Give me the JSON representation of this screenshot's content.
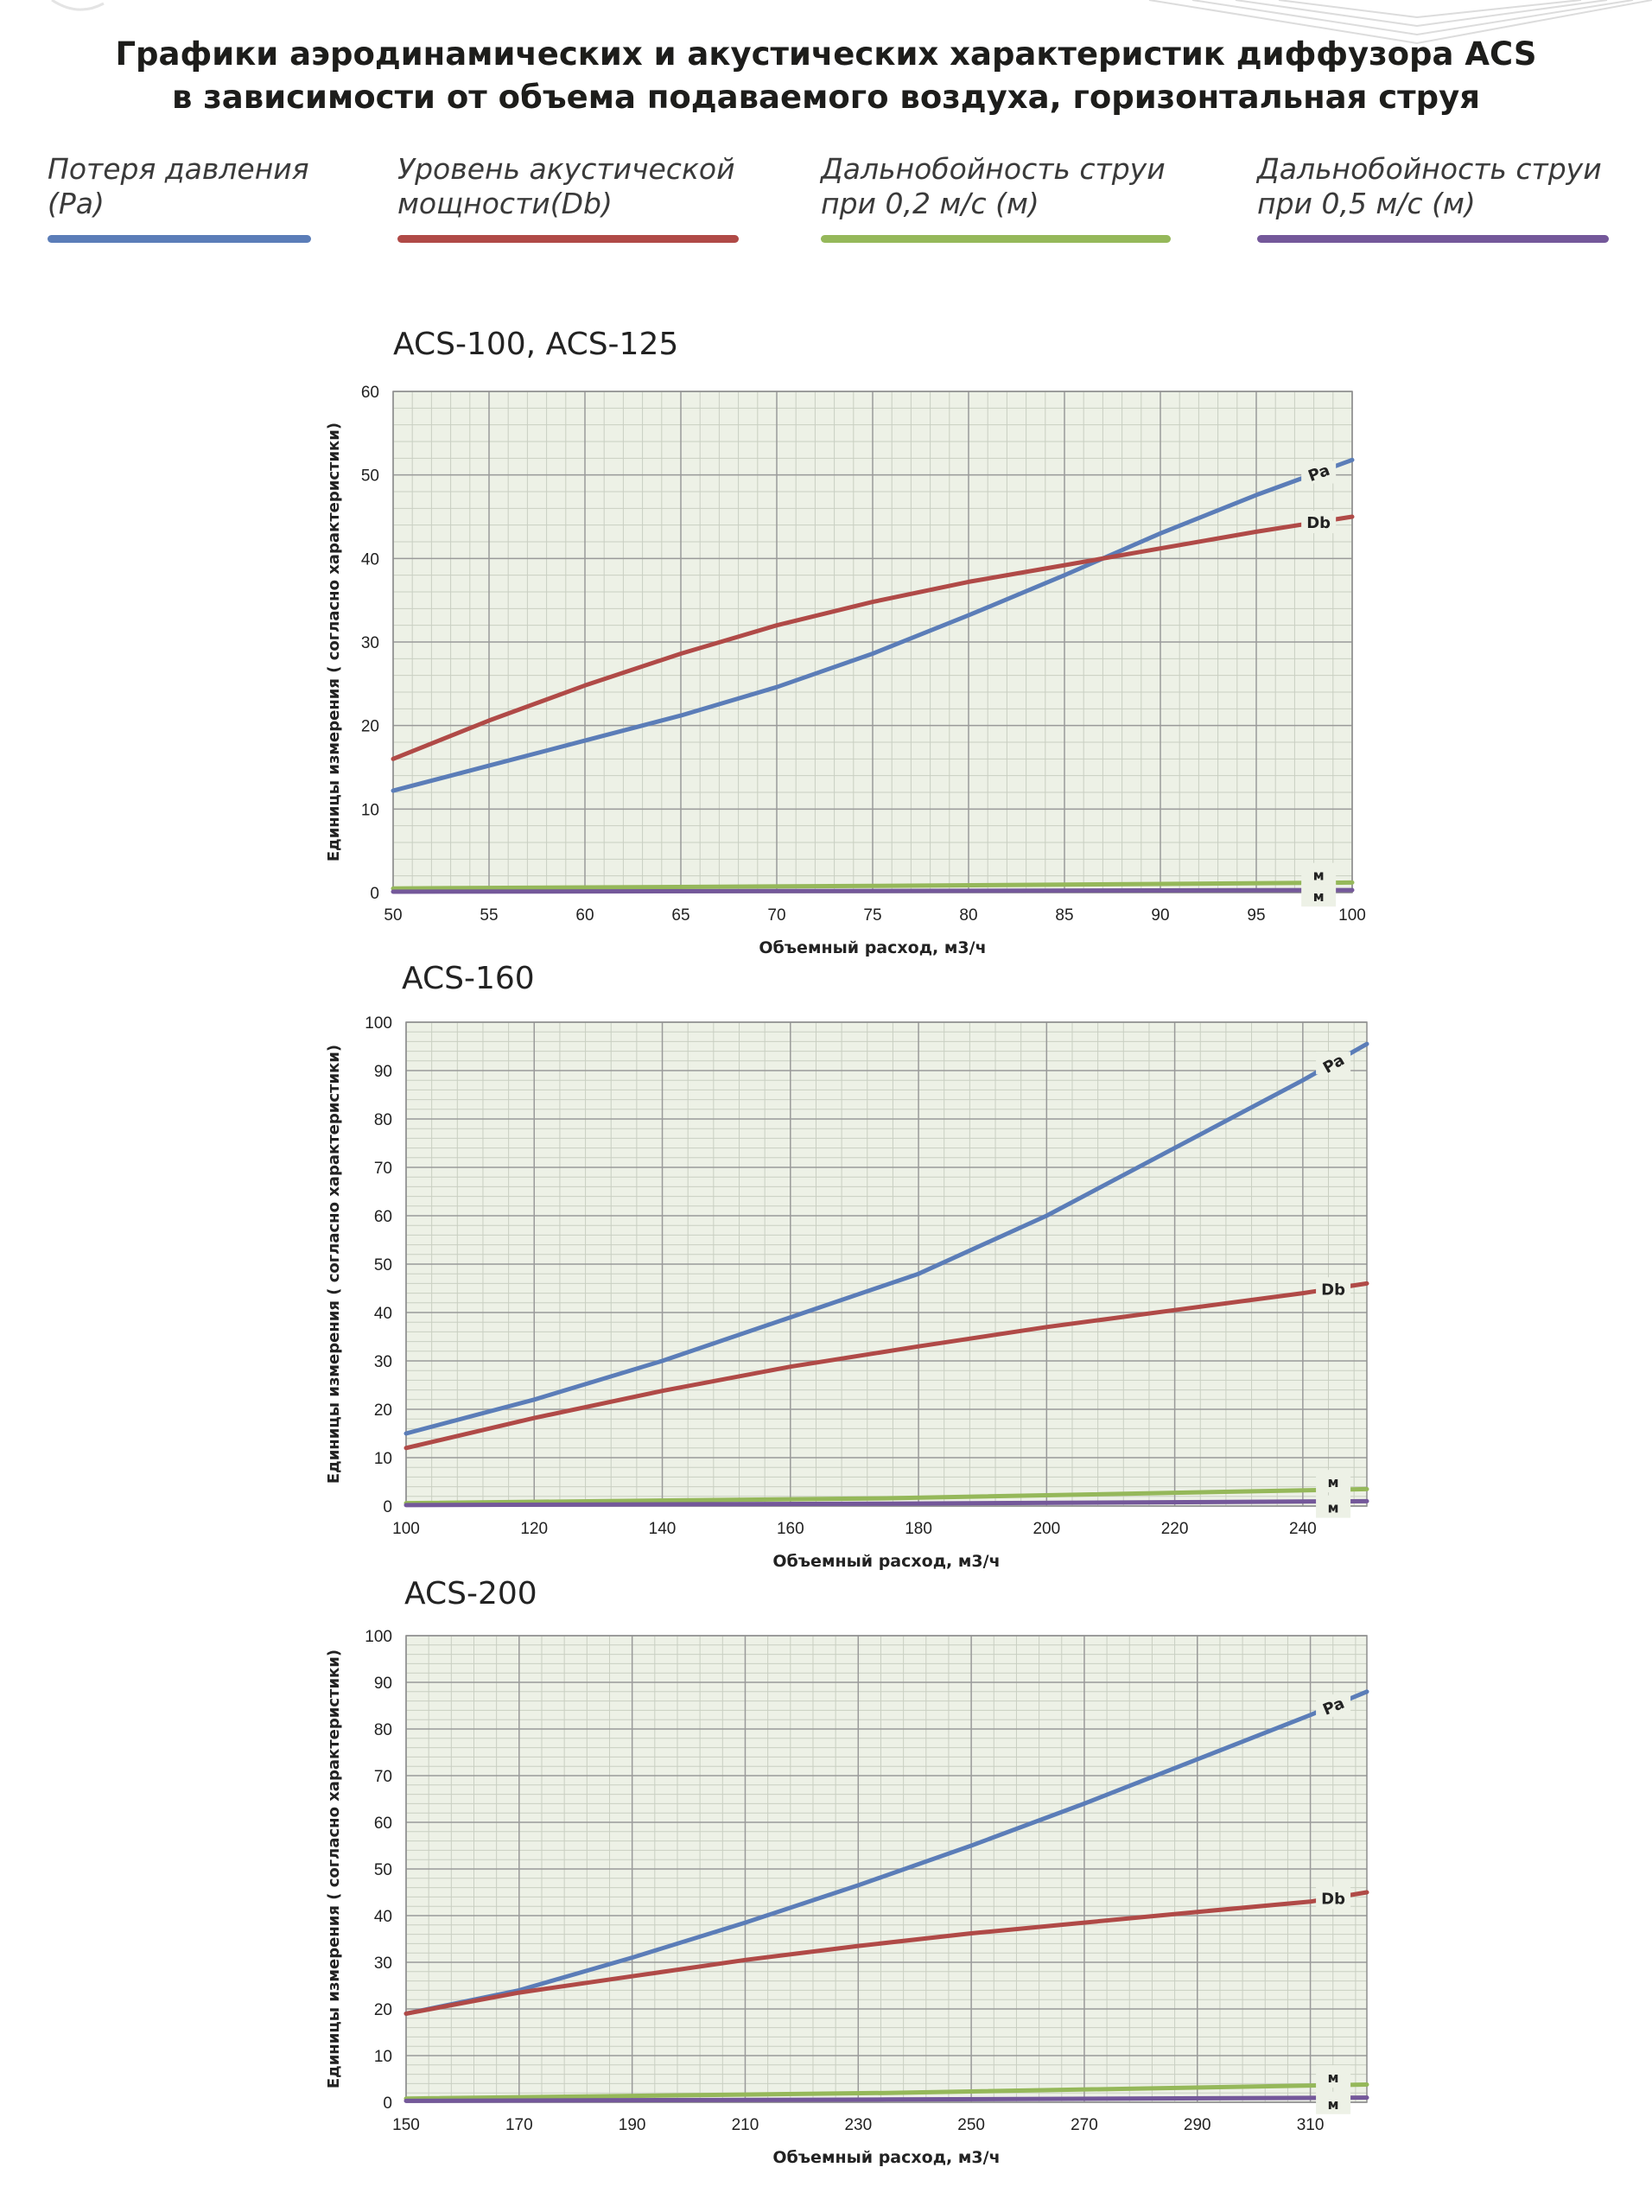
{
  "header": {
    "title_line1": "Графики аэродинамических и акустических характеристик диффузора ACS",
    "title_line2": "в зависимости от объема подаваемого воздуха, горизонтальная струя"
  },
  "legend": [
    {
      "label": "Потеря давления\n(Pa)",
      "color": "#5b7db8"
    },
    {
      "label": "Уровень акустической\nмощности(Db)",
      "color": "#b04a47"
    },
    {
      "label": "Дальнобойность струи\nпри 0,2 м/с (м)",
      "color": "#95b85a"
    },
    {
      "label": "Дальнобойность струи\nпри 0,5 м/с (м)",
      "color": "#74589a"
    }
  ],
  "colors": {
    "pa": "#5b7db8",
    "db": "#b04a47",
    "m02": "#95b85a",
    "m05": "#74589a",
    "plot_bg": "#edf1e6",
    "grid_major": "#9a9a9a",
    "grid_minor": "#c9cfc2"
  },
  "chart_data": [
    {
      "type": "line",
      "title": "ACS-100, ACS-125",
      "xlabel": "Объемный расход, м3/ч",
      "ylabel": "Единицы измерения ( согласно характеристики)",
      "xlim": [
        50,
        100
      ],
      "ylim": [
        0,
        60
      ],
      "xticks": [
        50,
        55,
        60,
        65,
        70,
        75,
        80,
        85,
        90,
        95,
        100
      ],
      "yticks": [
        0,
        10,
        20,
        30,
        40,
        50,
        60
      ],
      "grid": true,
      "series": [
        {
          "name": "Pa",
          "x": [
            50,
            55,
            60,
            65,
            70,
            75,
            80,
            85,
            90,
            95,
            100
          ],
          "y": [
            12.2,
            15.2,
            18.2,
            21.2,
            24.6,
            28.6,
            33.2,
            38,
            43,
            47.6,
            51.8
          ]
        },
        {
          "name": "Db",
          "x": [
            50,
            55,
            60,
            65,
            70,
            75,
            80,
            85,
            90,
            95,
            100
          ],
          "y": [
            16,
            20.6,
            24.8,
            28.6,
            32,
            34.8,
            37.2,
            39.2,
            41.2,
            43.2,
            45
          ]
        },
        {
          "name": "м",
          "x": [
            50,
            75,
            100
          ],
          "y": [
            0.5,
            0.8,
            1.2
          ]
        },
        {
          "name": "м",
          "x": [
            50,
            75,
            100
          ],
          "y": [
            0.1,
            0.2,
            0.3
          ]
        }
      ]
    },
    {
      "type": "line",
      "title": "ACS-160",
      "xlabel": "Объемный расход, м3/ч",
      "ylabel": "Единицы измерения ( согласно характеристики)",
      "xlim": [
        100,
        250
      ],
      "ylim": [
        0,
        100
      ],
      "xticks": [
        100,
        120,
        140,
        160,
        180,
        200,
        220,
        240
      ],
      "yticks": [
        0,
        10,
        20,
        30,
        40,
        50,
        60,
        70,
        80,
        90,
        100
      ],
      "grid": true,
      "series": [
        {
          "name": "Pa",
          "x": [
            100,
            120,
            140,
            160,
            180,
            200,
            220,
            240,
            250
          ],
          "y": [
            15,
            22,
            30,
            39,
            48,
            60,
            74,
            88,
            95.5
          ]
        },
        {
          "name": "Db",
          "x": [
            100,
            120,
            140,
            160,
            180,
            200,
            220,
            240,
            250
          ],
          "y": [
            12,
            18.2,
            23.8,
            28.8,
            33,
            37,
            40.5,
            44,
            46
          ]
        },
        {
          "name": "м",
          "x": [
            100,
            175,
            250
          ],
          "y": [
            0.6,
            1.6,
            3.5
          ]
        },
        {
          "name": "м",
          "x": [
            100,
            175,
            250
          ],
          "y": [
            0.2,
            0.5,
            1
          ]
        }
      ]
    },
    {
      "type": "line",
      "title": "ACS-200",
      "xlabel": "Объемный расход, м3/ч",
      "ylabel": "Единицы измерения ( согласно характеристики)",
      "xlim": [
        150,
        320
      ],
      "ylim": [
        0,
        100
      ],
      "xticks": [
        150,
        170,
        190,
        210,
        230,
        250,
        270,
        290,
        310
      ],
      "yticks": [
        0,
        10,
        20,
        30,
        40,
        50,
        60,
        70,
        80,
        90,
        100
      ],
      "grid": true,
      "series": [
        {
          "name": "Pa",
          "x": [
            150,
            170,
            190,
            210,
            230,
            250,
            270,
            290,
            310,
            320
          ],
          "y": [
            19,
            24,
            31,
            38.5,
            46.5,
            55,
            64,
            73.5,
            83,
            88
          ]
        },
        {
          "name": "Db",
          "x": [
            150,
            170,
            190,
            210,
            230,
            250,
            270,
            290,
            310,
            320
          ],
          "y": [
            19,
            23.5,
            27,
            30.5,
            33.5,
            36.2,
            38.5,
            40.8,
            43,
            45
          ]
        },
        {
          "name": "м",
          "x": [
            150,
            235,
            320
          ],
          "y": [
            0.8,
            2,
            3.8
          ]
        },
        {
          "name": "м",
          "x": [
            150,
            235,
            320
          ],
          "y": [
            0.3,
            0.6,
            1
          ]
        }
      ]
    }
  ]
}
